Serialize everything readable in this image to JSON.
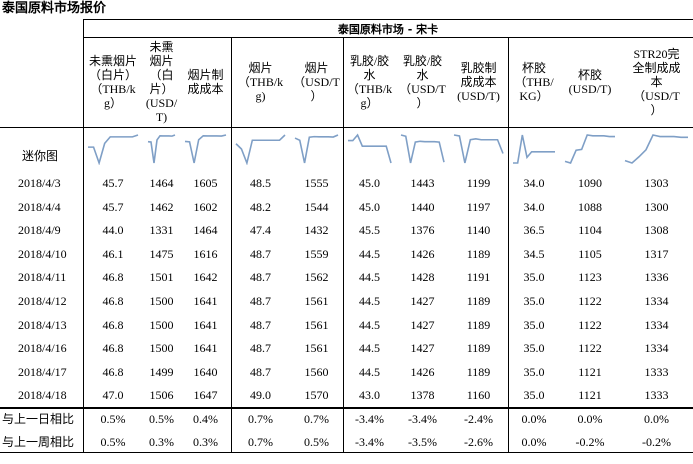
{
  "title": "泰国原料市场报价",
  "group_header": "泰国原料市场 - 宋卡",
  "sparkline_label": "迷你图",
  "columns": [
    "未熏烟片\n（白片）\n（THB/k\ng）",
    "未熏\n烟片\n（白\n片）\n(USD/\nT)",
    "烟片制\n成成本",
    "烟片\n（THB/k\ng)",
    "烟片\n（USD/T\n）",
    "乳胶/胶\n水\n（THB/k\ng）",
    "乳胶/胶\n水\n（USD/T\n）",
    "乳胶制\n成成本\n(USD/T)",
    "杯胶\n（THB/\nKG）",
    "杯胶\n(USD/T)",
    "STR20完\n全制成成\n本\n（USD/T\n）"
  ],
  "rows": [
    {
      "date": "2018/4/3",
      "values": [
        "45.7",
        "1464",
        "1605",
        "48.5",
        "1555",
        "45.0",
        "1443",
        "1199",
        "34.0",
        "1090",
        "1303"
      ]
    },
    {
      "date": "2018/4/4",
      "values": [
        "45.7",
        "1462",
        "1602",
        "48.2",
        "1544",
        "45.0",
        "1440",
        "1197",
        "34.0",
        "1088",
        "1300"
      ]
    },
    {
      "date": "2018/4/9",
      "values": [
        "44.0",
        "1331",
        "1464",
        "47.4",
        "1432",
        "45.5",
        "1376",
        "1140",
        "36.5",
        "1104",
        "1308"
      ]
    },
    {
      "date": "2018/4/10",
      "values": [
        "46.1",
        "1475",
        "1616",
        "48.7",
        "1559",
        "44.5",
        "1426",
        "1189",
        "34.5",
        "1105",
        "1317"
      ]
    },
    {
      "date": "2018/4/11",
      "values": [
        "46.8",
        "1501",
        "1642",
        "48.7",
        "1562",
        "44.5",
        "1428",
        "1191",
        "35.0",
        "1123",
        "1336"
      ]
    },
    {
      "date": "2018/4/12",
      "values": [
        "46.8",
        "1500",
        "1641",
        "48.7",
        "1561",
        "44.5",
        "1427",
        "1189",
        "35.0",
        "1122",
        "1334"
      ]
    },
    {
      "date": "2018/4/13",
      "values": [
        "46.8",
        "1500",
        "1641",
        "48.7",
        "1561",
        "44.5",
        "1427",
        "1189",
        "35.0",
        "1122",
        "1334"
      ]
    },
    {
      "date": "2018/4/16",
      "values": [
        "46.8",
        "1500",
        "1641",
        "48.7",
        "1561",
        "44.5",
        "1427",
        "1189",
        "35.0",
        "1122",
        "1334"
      ]
    },
    {
      "date": "2018/4/17",
      "values": [
        "46.8",
        "1499",
        "1640",
        "48.7",
        "1560",
        "44.5",
        "1426",
        "1189",
        "35.0",
        "1121",
        "1333"
      ]
    },
    {
      "date": "2018/4/18",
      "values": [
        "47.0",
        "1506",
        "1647",
        "49.0",
        "1570",
        "43.0",
        "1378",
        "1160",
        "35.0",
        "1121",
        "1333"
      ]
    }
  ],
  "summary": [
    {
      "label": "与上一日相比",
      "values": [
        "0.5%",
        "0.5%",
        "0.4%",
        "0.7%",
        "0.7%",
        "-3.4%",
        "-3.4%",
        "-2.4%",
        "0.0%",
        "0.0%",
        "0.0%"
      ]
    },
    {
      "label": "与上一周相比",
      "values": [
        "0.5%",
        "0.3%",
        "0.3%",
        "0.7%",
        "0.5%",
        "-3.4%",
        "-3.5%",
        "-2.6%",
        "0.0%",
        "-0.2%",
        "-0.2%"
      ]
    }
  ],
  "sparkline_color": "#7f9fc6"
}
